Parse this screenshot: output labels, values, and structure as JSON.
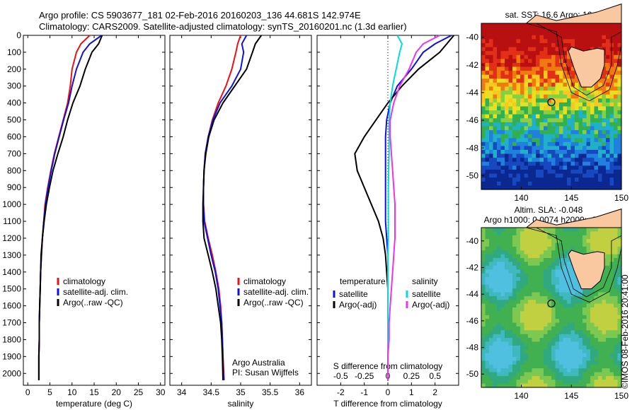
{
  "header": {
    "line1": "Argo profile: CS 5903677_181 02-Feb-2016 20160203_136 44.681S 142.974E",
    "line2": "Climatology: CARS2009. Satellite-adjusted climatology: synTS_20160201.nc (1.3d earlier)"
  },
  "footer": {
    "credit": "©IMOS 08-Feb-2016 20:41:00"
  },
  "colors": {
    "red": "#ee1111",
    "blue": "#1111dd",
    "black": "#000000",
    "cyan": "#00dddd",
    "magenta": "#ee33ee",
    "land": "#fac8a0"
  },
  "maps": [
    {
      "title": "sat. SST: 16.6 Argo: 16.6",
      "xlim": [
        136,
        150
      ],
      "ylim": [
        -51,
        -39
      ],
      "xticks": [
        140,
        145,
        150
      ],
      "yticks": [
        -40,
        -42,
        -44,
        -46,
        -48,
        -50
      ],
      "float": [
        143.0,
        -44.7
      ],
      "field": "sst"
    },
    {
      "title": "Altim. SLA: -0.048",
      "subtitle": "Argo h1000: 0.0074 h2000: -0.055",
      "xlim": [
        136,
        150
      ],
      "ylim": [
        -51,
        -39
      ],
      "xticks": [
        140,
        145,
        150
      ],
      "yticks": [
        -40,
        -42,
        -44,
        -46,
        -48,
        -50
      ],
      "float": [
        143.0,
        -44.7
      ],
      "field": "sla"
    }
  ],
  "chart_data": [
    {
      "type": "line",
      "xlabel": "temperature (deg C)",
      "xlim": [
        -1,
        31
      ],
      "ylim": [
        2070,
        0
      ],
      "xticks": [
        0,
        5,
        10,
        15,
        20,
        25,
        30
      ],
      "yticks": [
        0,
        100,
        200,
        300,
        400,
        500,
        600,
        700,
        800,
        900,
        1000,
        1100,
        1200,
        1300,
        1400,
        1500,
        1600,
        1700,
        1800,
        1900,
        2000
      ],
      "legend": [
        "climatology",
        "satellite-adj. clim.",
        "Argo(..raw -QC)"
      ],
      "series": [
        {
          "name": "climatology",
          "color": "red",
          "x": [
            14.0,
            12.0,
            11.0,
            10.0,
            9.6,
            9.0,
            8.0,
            7.0,
            6.0,
            5.2,
            4.5,
            3.9,
            3.6,
            3.3,
            3.1,
            2.9,
            2.8,
            2.7,
            2.6,
            2.6,
            2.5,
            2.5
          ],
          "y": [
            0,
            50,
            100,
            200,
            300,
            400,
            500,
            600,
            700,
            800,
            900,
            1000,
            1100,
            1200,
            1300,
            1400,
            1500,
            1600,
            1700,
            1800,
            1900,
            2040
          ]
        },
        {
          "name": "satellite-adj. clim.",
          "color": "blue",
          "x": [
            16.7,
            14.0,
            12.5,
            11.0,
            10.0,
            9.2,
            8.1,
            7.1,
            6.1,
            5.3,
            4.6,
            4.0,
            3.6,
            3.3,
            3.1,
            2.9,
            2.8,
            2.7,
            2.6,
            2.6,
            2.5,
            2.5
          ],
          "y": [
            0,
            50,
            100,
            200,
            300,
            400,
            500,
            600,
            700,
            800,
            900,
            1000,
            1100,
            1200,
            1300,
            1400,
            1500,
            1600,
            1700,
            1800,
            1900,
            2040
          ]
        },
        {
          "name": "Argo(..raw -QC)",
          "color": "black",
          "x": [
            16.8,
            16.0,
            14.5,
            13.0,
            11.8,
            10.2,
            9.0,
            8.0,
            6.8,
            5.7,
            4.9,
            4.2,
            3.7,
            3.3,
            3.0,
            2.9,
            2.8,
            2.7,
            2.6,
            2.6,
            2.5,
            2.5
          ],
          "y": [
            0,
            50,
            100,
            200,
            300,
            400,
            500,
            600,
            700,
            800,
            900,
            1000,
            1100,
            1200,
            1300,
            1400,
            1500,
            1600,
            1700,
            1800,
            1900,
            2040
          ]
        }
      ]
    },
    {
      "type": "line",
      "xlabel": "salinity",
      "xlim": [
        33.8,
        36.2
      ],
      "ylim": [
        2070,
        0
      ],
      "xticks": [
        34,
        34.5,
        35,
        35.5,
        36
      ],
      "yticks": [
        0,
        100,
        200,
        300,
        400,
        500,
        600,
        700,
        800,
        900,
        1000,
        1100,
        1200,
        1300,
        1400,
        1500,
        1600,
        1700,
        1800,
        1900,
        2000
      ],
      "legend": [
        "climatology",
        "satellite-adj. clim.",
        "Argo(..raw -QC)"
      ],
      "annotation": [
        "Argo Australia",
        "PI: Susan Wijffels"
      ],
      "series": [
        {
          "name": "climatology",
          "color": "red",
          "x": [
            35.0,
            34.95,
            34.92,
            34.85,
            34.75,
            34.62,
            34.52,
            34.45,
            34.4,
            34.38,
            34.37,
            34.37,
            34.39,
            34.45,
            34.52,
            34.58,
            34.63,
            34.66,
            34.68,
            34.69,
            34.7,
            34.72
          ],
          "y": [
            0,
            50,
            100,
            200,
            300,
            400,
            500,
            600,
            700,
            800,
            900,
            1000,
            1100,
            1200,
            1300,
            1400,
            1500,
            1600,
            1700,
            1800,
            1900,
            2040
          ]
        },
        {
          "name": "satellite-adj. clim.",
          "color": "blue",
          "x": [
            35.1,
            35.02,
            35.05,
            35.0,
            34.85,
            34.65,
            34.53,
            34.45,
            34.4,
            34.38,
            34.37,
            34.37,
            34.38,
            34.44,
            34.5,
            34.57,
            34.62,
            34.65,
            34.68,
            34.69,
            34.7,
            34.71
          ],
          "y": [
            0,
            50,
            100,
            200,
            300,
            400,
            500,
            600,
            700,
            800,
            900,
            1000,
            1100,
            1200,
            1300,
            1400,
            1500,
            1600,
            1700,
            1800,
            1900,
            2040
          ]
        },
        {
          "name": "Argo(..raw -QC)",
          "color": "black",
          "x": [
            35.35,
            35.25,
            35.2,
            35.1,
            34.9,
            34.7,
            34.55,
            34.46,
            34.41,
            34.38,
            34.37,
            34.36,
            34.36,
            34.38,
            34.45,
            34.52,
            34.58,
            34.62,
            34.66,
            34.68,
            34.69,
            34.7
          ],
          "y": [
            0,
            50,
            100,
            200,
            300,
            400,
            500,
            600,
            700,
            800,
            900,
            1000,
            1100,
            1200,
            1300,
            1400,
            1500,
            1600,
            1700,
            1800,
            1900,
            2040
          ]
        }
      ]
    },
    {
      "type": "line",
      "xlabel": "T difference from climatology",
      "xlabel_top": "S difference from climatology",
      "xlim": [
        -3,
        3
      ],
      "ylim": [
        2070,
        0
      ],
      "xticks": [
        -2,
        -1,
        0,
        1,
        2
      ],
      "xticks_s": [
        -0.5,
        -0.25,
        0,
        0.25,
        0.5
      ],
      "yticks": [
        0,
        100,
        200,
        300,
        400,
        500,
        600,
        700,
        800,
        900,
        1000,
        1100,
        1200,
        1300,
        1400,
        1500,
        1600,
        1700,
        1800,
        1900,
        2000
      ],
      "legend_left_title": "temperature",
      "legend_right_title": "salinity",
      "legend": [
        "satellite",
        "Argo(-adj)",
        "satellite",
        "Argo(-adj)"
      ],
      "series": [
        {
          "name": "satellite",
          "color": "blue",
          "x": [
            2.7,
            2.0,
            1.5,
            1.0,
            0.4,
            0.1,
            -0.05,
            -0.1,
            -0.1,
            -0.1,
            -0.1,
            -0.1,
            -0.1,
            -0.05,
            0,
            0,
            0,
            0,
            0,
            0,
            0,
            0
          ],
          "y": [
            0,
            50,
            100,
            200,
            300,
            400,
            500,
            600,
            700,
            800,
            900,
            1000,
            1100,
            1200,
            1300,
            1400,
            1500,
            1600,
            1700,
            1800,
            1900,
            2040
          ]
        },
        {
          "name": "Argo(-adj)",
          "color": "black",
          "x": [
            2.8,
            2.5,
            2.2,
            1.3,
            0.6,
            0.0,
            -0.5,
            -1.0,
            -1.4,
            -1.3,
            -1.0,
            -0.7,
            -0.4,
            -0.2,
            -0.1,
            -0.05,
            0,
            0,
            0,
            0,
            0,
            0
          ],
          "y": [
            0,
            50,
            100,
            200,
            300,
            400,
            500,
            600,
            700,
            800,
            900,
            1000,
            1100,
            1200,
            1300,
            1400,
            1500,
            1600,
            1700,
            1800,
            1900,
            2040
          ]
        },
        {
          "name": "satellite",
          "color": "cyan",
          "x": [
            0.4,
            0.6,
            0.5,
            0.35,
            0.2,
            0.1,
            0.05,
            0.05,
            0.05,
            0.03,
            0.02,
            0.02,
            0.02,
            0.02,
            0,
            0,
            0,
            0,
            0,
            0,
            0,
            0
          ],
          "y": [
            0,
            50,
            100,
            200,
            300,
            400,
            500,
            600,
            700,
            800,
            900,
            1000,
            1100,
            1200,
            1300,
            1400,
            1500,
            1600,
            1700,
            1800,
            1900,
            2040
          ]
        },
        {
          "name": "Argo(-adj)",
          "color": "magenta",
          "x": [
            2.2,
            1.5,
            1.2,
            0.9,
            0.5,
            0.25,
            0.1,
            0.1,
            0.15,
            0.2,
            0.25,
            0.3,
            0.3,
            0.3,
            0.25,
            0.2,
            0.15,
            0.1,
            0.05,
            0.05,
            0,
            0
          ],
          "y": [
            0,
            50,
            100,
            200,
            300,
            400,
            500,
            600,
            700,
            800,
            900,
            1000,
            1100,
            1200,
            1300,
            1400,
            1500,
            1600,
            1700,
            1800,
            1900,
            2040
          ]
        }
      ]
    }
  ]
}
